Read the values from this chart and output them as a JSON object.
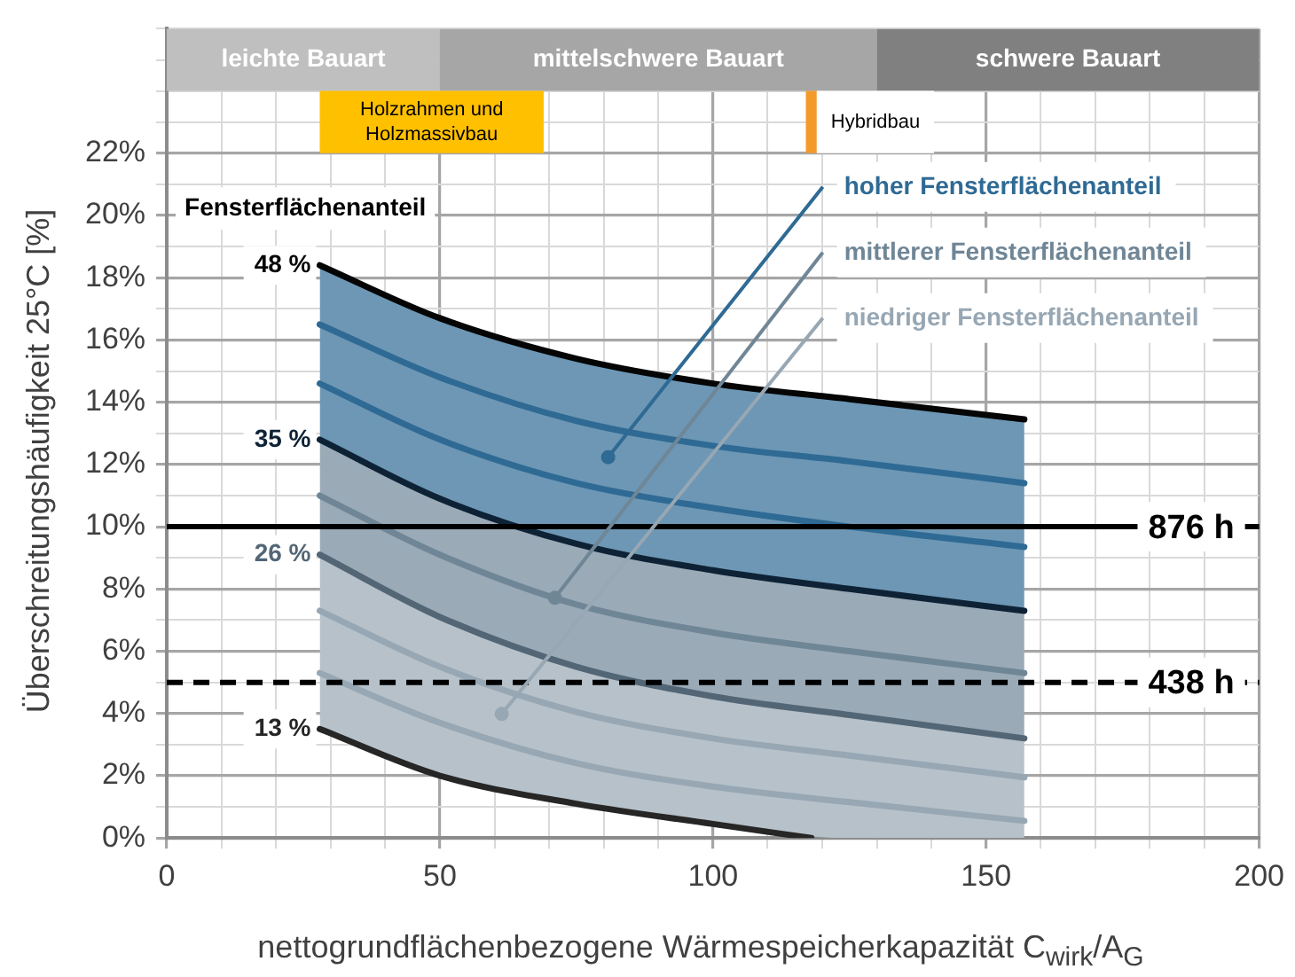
{
  "chart_data": {
    "type": "line",
    "xlabel": "nettogrundflächenbezogene  Wärmespeicherkapazität  C$_{wirk}$/A$_{G}$",
    "ylabel": "Überschreitungshäufigkeit  25°C [%]",
    "legend_title": "Fensterflächenanteil",
    "xlim": [
      0,
      200
    ],
    "xticks": [
      0,
      {
        "value": 10,
        "label": null
      },
      {
        "value": 20,
        "label": null
      },
      {
        "value": 30,
        "label": null
      },
      {
        "value": 40,
        "label": null
      },
      50,
      {
        "value": 60,
        "label": null
      },
      {
        "value": 70,
        "label": null
      },
      {
        "value": 80,
        "label": null
      },
      {
        "value": 90,
        "label": null
      },
      100,
      {
        "value": 110,
        "label": null
      },
      {
        "value": 120,
        "label": null
      },
      {
        "value": 130,
        "label": null
      },
      {
        "value": 140,
        "label": null
      },
      150,
      {
        "value": 160,
        "label": null
      },
      {
        "value": 170,
        "label": null
      },
      {
        "value": 180,
        "label": null
      },
      {
        "value": 190,
        "label": null
      },
      200
    ],
    "ylim": [
      0,
      26
    ],
    "yticks": [
      {
        "value": 0,
        "label": "0%"
      },
      {
        "value": 1,
        "label": null
      },
      {
        "value": 2,
        "label": "2%"
      },
      {
        "value": 3,
        "label": null
      },
      {
        "value": 4,
        "label": "4%"
      },
      {
        "value": 5,
        "label": null
      },
      {
        "value": 6,
        "label": "6%"
      },
      {
        "value": 7,
        "label": null
      },
      {
        "value": 8,
        "label": "8%"
      },
      {
        "value": 9,
        "label": null
      },
      {
        "value": 10,
        "label": "10%"
      },
      {
        "value": 11,
        "label": null
      },
      {
        "value": 12,
        "label": "12%"
      },
      {
        "value": 13,
        "label": null
      },
      {
        "value": 14,
        "label": "14%"
      },
      {
        "value": 15,
        "label": null
      },
      {
        "value": 16,
        "label": "16%"
      },
      {
        "value": 17,
        "label": null
      },
      {
        "value": 18,
        "label": "18%"
      },
      {
        "value": 19,
        "label": null
      },
      {
        "value": 20,
        "label": "20%"
      },
      {
        "value": 21,
        "label": null
      },
      {
        "value": 22,
        "label": "22%"
      },
      {
        "value": 23,
        "label": null
      },
      {
        "value": 24,
        "label": null
      },
      {
        "value": 25,
        "label": null
      },
      {
        "value": 26,
        "label": null
      }
    ],
    "grid": true,
    "marker": "none",
    "line_style": "solid",
    "series": [
      {
        "type": "line",
        "name": "48 %",
        "color": "#050505",
        "x": [
          28,
          50,
          75,
          100,
          125,
          157
        ],
        "values": [
          18.4,
          16.7,
          15.4,
          14.6,
          14.1,
          13.45
        ]
      },
      {
        "type": "line",
        "name": "hoher Fensterflächenanteil",
        "color": "#2f6a94",
        "x": [
          28,
          50,
          75,
          100,
          125,
          157
        ],
        "values": [
          16.5,
          14.8,
          13.4,
          12.6,
          12.1,
          11.4
        ],
        "lower": [
          12.8,
          10.9,
          9.45,
          8.6,
          8.0,
          7.3
        ],
        "upper": [
          18.4,
          16.7,
          15.4,
          14.6,
          14.1,
          13.45
        ]
      },
      {
        "type": "line",
        "color": "#2f6a94",
        "x": [
          28,
          50,
          75,
          100,
          125,
          157
        ],
        "values": [
          14.6,
          12.8,
          11.4,
          10.6,
          10.0,
          9.35
        ]
      },
      {
        "type": "line",
        "name": "35 %",
        "color": "#0e2236",
        "x": [
          28,
          50,
          75,
          100,
          125,
          157
        ],
        "values": [
          12.8,
          10.9,
          9.45,
          8.6,
          8.0,
          7.3
        ]
      },
      {
        "type": "line",
        "name": "mittlerer Fensterflächenanteil",
        "color": "#6f8696",
        "x": [
          28,
          50,
          75,
          100,
          125,
          157
        ],
        "values": [
          11.0,
          9.1,
          7.5,
          6.6,
          6.0,
          5.3
        ],
        "lower": [
          9.1,
          7.1,
          5.5,
          4.55,
          3.95,
          3.2
        ],
        "upper": [
          12.8,
          10.9,
          9.45,
          8.6,
          8.0,
          7.3
        ]
      },
      {
        "type": "line",
        "name": "26 %",
        "color": "#536676",
        "x": [
          28,
          50,
          75,
          100,
          125,
          157
        ],
        "values": [
          9.1,
          7.1,
          5.5,
          4.55,
          3.95,
          3.2
        ]
      },
      {
        "type": "line",
        "color": "#97a7b3",
        "x": [
          28,
          50,
          75,
          100,
          125,
          157
        ],
        "values": [
          7.3,
          5.5,
          4.05,
          3.2,
          2.65,
          1.95
        ]
      },
      {
        "type": "line",
        "name": "niedriger Fensterflächenanteil",
        "color": "#97a7b3",
        "x": [
          28,
          50,
          75,
          100,
          125,
          157
        ],
        "values": [
          5.3,
          3.7,
          2.4,
          1.65,
          1.15,
          0.55
        ],
        "lower": [
          3.5,
          2.0,
          1.1,
          0.45,
          0,
          0
        ],
        "upper": [
          9.1,
          7.1,
          5.5,
          4.55,
          3.95,
          3.2
        ]
      },
      {
        "type": "line",
        "name": "13 %",
        "color": "#262626",
        "x": [
          28,
          50,
          75,
          100,
          118
        ],
        "values": [
          3.5,
          2.0,
          1.1,
          0.45,
          0
        ]
      }
    ],
    "ref_lines": [
      {
        "axis": "y",
        "value": 10,
        "label": "876 h",
        "color": "#000000",
        "line_style": "solid"
      },
      {
        "axis": "y",
        "value": 5,
        "label": "438 h",
        "color": "#000000",
        "line_style": "dashed"
      }
    ],
    "bands": [
      {
        "axis": "x",
        "from": 0,
        "to": 50,
        "label": "leichte Bauart",
        "color": "#bfbfbf"
      },
      {
        "axis": "x",
        "from": 50,
        "to": 130,
        "label": "mittelschwere Bauart",
        "color": "#a6a6a6"
      },
      {
        "axis": "x",
        "from": 130,
        "to": 200,
        "label": "schwere Bauart",
        "color": "#808080"
      },
      {
        "axis": "x",
        "from": 28,
        "to": 69,
        "label": "Holzrahmen und Holzmassivbau",
        "color": "#ffc000"
      },
      {
        "axis": "x",
        "from": 117,
        "to": 119,
        "label": "Hybridbau",
        "color": "#f39a2b"
      }
    ]
  }
}
